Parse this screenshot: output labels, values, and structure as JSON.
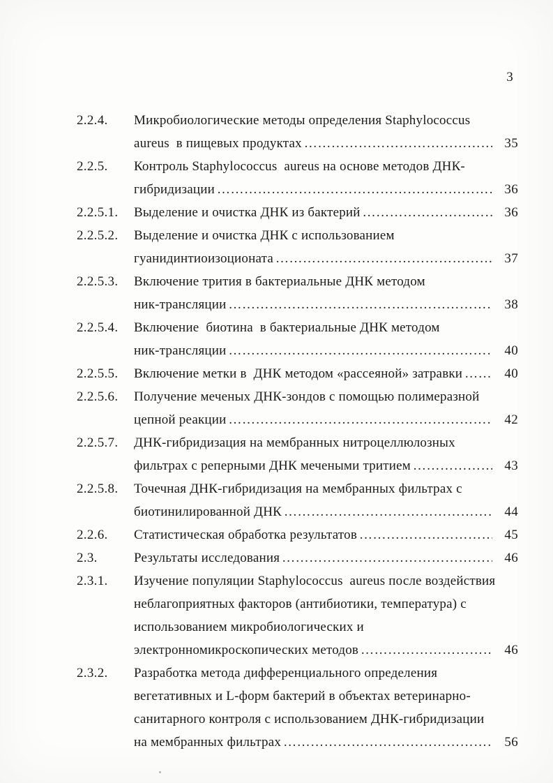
{
  "page": {
    "number": "3"
  },
  "toc": {
    "leader": "………………………………………………………………………………………………………………",
    "entries": [
      {
        "number": "2.2.4.",
        "pre_lines": [
          "Микробиологические методы определения Staphylococcus"
        ],
        "last_line": "aureus  в пищевых продуктах",
        "page": "35"
      },
      {
        "number": "2.2.5.",
        "pre_lines": [
          "Контроль Staphylococcus  aureus на основе методов ДНК-"
        ],
        "last_line": "гибридизации",
        "page": "36"
      },
      {
        "number": "2.2.5.1.",
        "pre_lines": [],
        "last_line": "Выделение и очистка ДНК из бактерий",
        "page": "36"
      },
      {
        "number": "2.2.5.2.",
        "pre_lines": [
          "Выделение и очистка ДНК с использованием"
        ],
        "last_line": "гуанидинтиоизоционата",
        "page": "37"
      },
      {
        "number": "2.2.5.3.",
        "pre_lines": [
          "Включение трития в бактериальные ДНК методом"
        ],
        "last_line": "ник-трансляции",
        "page": "38"
      },
      {
        "number": "2.2.5.4.",
        "pre_lines": [
          "Включение  биотина  в бактериальные ДНК методом"
        ],
        "last_line": "ник-трансляции",
        "page": "40"
      },
      {
        "number": "2.2.5.5.",
        "pre_lines": [],
        "last_line": "Включение метки в  ДНК методом «рассеяной» затравки",
        "page": "40"
      },
      {
        "number": "2.2.5.6.",
        "pre_lines": [
          "Получение меченых ДНК-зондов с помощью полимеразной"
        ],
        "last_line": "цепной реакции",
        "page": "42"
      },
      {
        "number": "2.2.5.7.",
        "pre_lines": [
          "ДНК-гибридизация на мембранных нитроцеллюлозных"
        ],
        "last_line": "фильтрах с реперными ДНК мечеными тритием",
        "page": "43"
      },
      {
        "number": "2.2.5.8.",
        "pre_lines": [
          "Точечная ДНК-гибридизация на мембранных фильтрах с"
        ],
        "last_line": "биотинилированной ДНК",
        "page": "44"
      },
      {
        "number": "2.2.6.",
        "pre_lines": [],
        "last_line": "Статистическая обработка результатов",
        "page": "45"
      },
      {
        "number": "2.3.",
        "pre_lines": [],
        "last_line": "Результаты исследования",
        "page": "46"
      },
      {
        "number": "2.3.1.",
        "pre_lines": [
          "Изучение популяции Staphylococcus  aureus после воздействия",
          "неблагоприятных факторов (антибиотики, температура) с",
          "использованием микробиологических и"
        ],
        "last_line": "электронномикроскопических методов",
        "page": "46"
      },
      {
        "number": "2.3.2.",
        "pre_lines": [
          "Разработка метода дифференциального определения",
          "вегетативных и L-форм бактерий в объектах ветеринарно-",
          "санитарного контроля с использованием ДНК-гибридизации"
        ],
        "last_line": "на мембранных фильтрах",
        "page": "56"
      }
    ]
  }
}
